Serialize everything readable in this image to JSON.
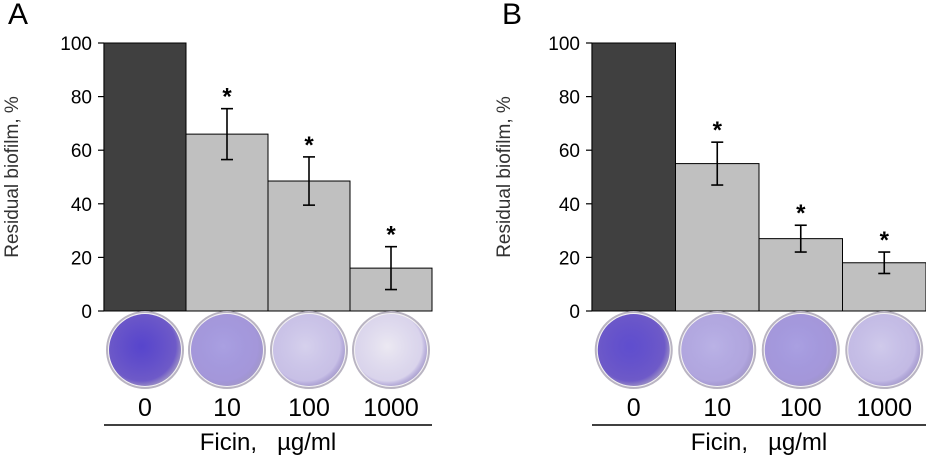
{
  "chart_data": [
    {
      "panel_label": "A",
      "type": "bar",
      "categories": [
        "0",
        "10",
        "100",
        "1000"
      ],
      "values": [
        100,
        66,
        48.5,
        16
      ],
      "errors": [
        null,
        9.5,
        9,
        8
      ],
      "significance": [
        "",
        "*",
        "*",
        "*"
      ],
      "bar_colors": [
        "#404040",
        "#c0c0c0",
        "#c0c0c0",
        "#c0c0c0"
      ],
      "ylabel": "Residual biofilm, %",
      "xlabel": "Ficin,   µg/ml",
      "yticks": [
        "0",
        "20",
        "40",
        "60",
        "80",
        "100"
      ],
      "ylim": [
        0,
        100
      ],
      "grid": false,
      "well_stain": [
        0.95,
        0.45,
        0.18,
        0.05
      ]
    },
    {
      "panel_label": "B",
      "type": "bar",
      "categories": [
        "0",
        "10",
        "100",
        "1000"
      ],
      "values": [
        100,
        55,
        27,
        18
      ],
      "errors": [
        null,
        8,
        5,
        4
      ],
      "significance": [
        "",
        "*",
        "*",
        "*"
      ],
      "bar_colors": [
        "#404040",
        "#c0c0c0",
        "#c0c0c0",
        "#c0c0c0"
      ],
      "ylabel": "Residual biofilm, %",
      "xlabel": "Ficin,   µg/ml",
      "yticks": [
        "0",
        "20",
        "40",
        "60",
        "80",
        "100"
      ],
      "ylim": [
        0,
        100
      ],
      "grid": false,
      "well_stain": [
        0.9,
        0.35,
        0.45,
        0.22
      ]
    }
  ]
}
